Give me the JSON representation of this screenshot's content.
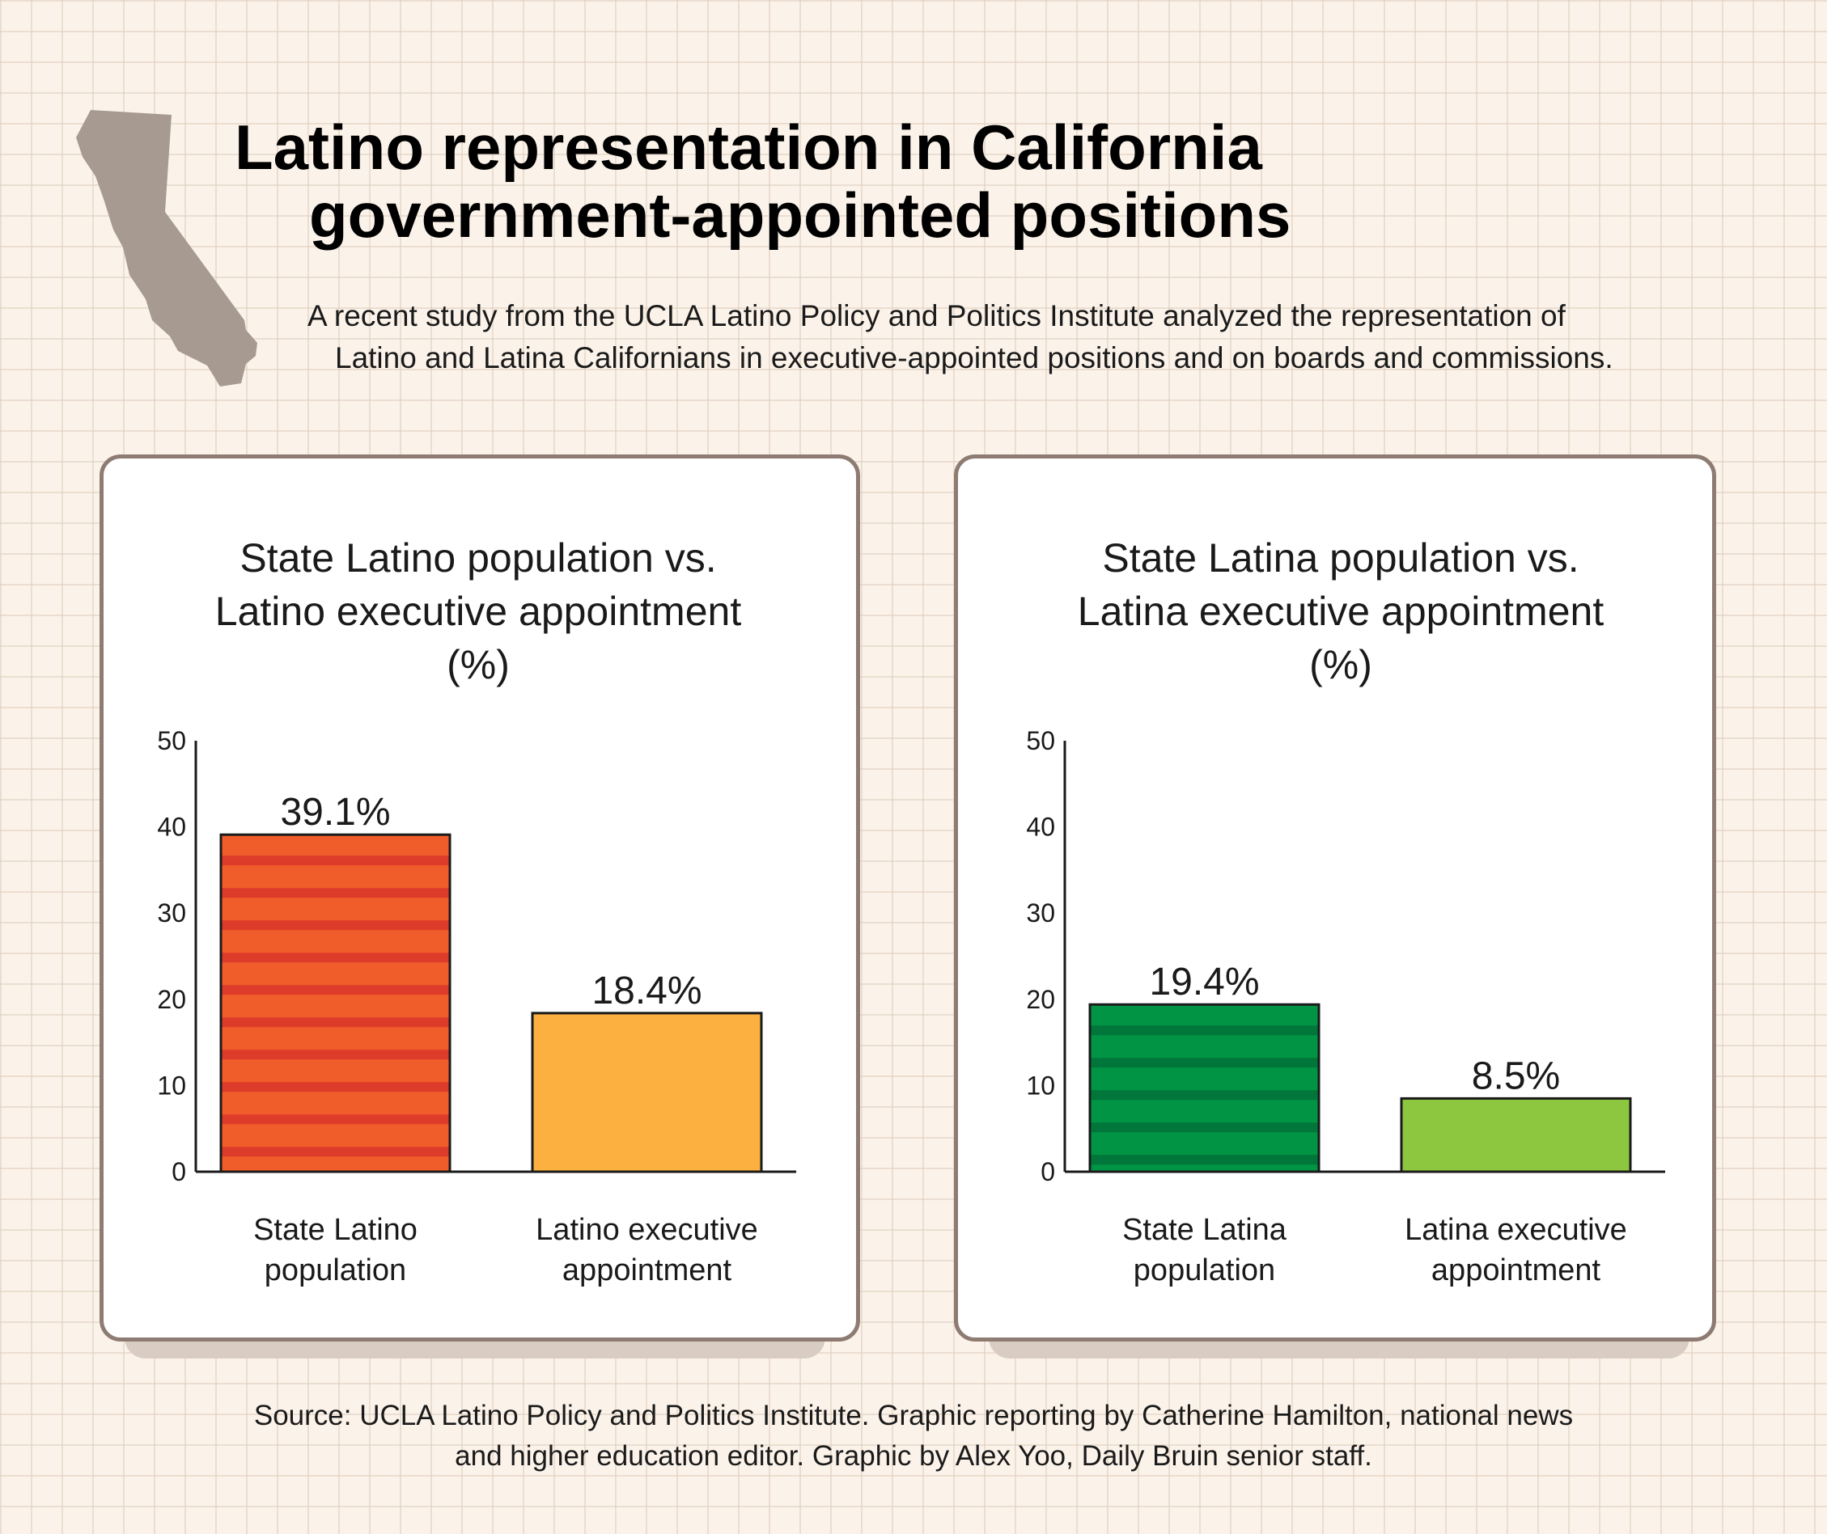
{
  "header": {
    "title_line1": "Latino representation in California",
    "title_line2": "government-appointed positions",
    "subtitle_line1": "A recent study from the UCLA Latino Policy and Politics Institute analyzed the representation of",
    "subtitle_line2": "Latino and Latina Californians in executive-appointed positions and on boards and commissions."
  },
  "footer": {
    "source_line1": "Source: UCLA Latino Policy and Politics Institute. Graphic reporting by Catherine Hamilton, national news",
    "source_line2": "and higher education editor. Graphic by Alex Yoo, Daily Bruin senior staff."
  },
  "colors": {
    "background": "#fbf3ea",
    "card_border": "#8e7c73",
    "map": "#a69a91",
    "latino_population": "#f15d2a",
    "latino_population_stripe": "#de3c2a",
    "latino_appointment": "#fbb040",
    "latina_population": "#009444",
    "latina_population_stripe": "#00763a",
    "latina_appointment": "#8dc63f"
  },
  "chart_data": [
    {
      "type": "bar",
      "title_lines": [
        "State Latino population vs.",
        "Latino executive appointment",
        "(%)"
      ],
      "categories": [
        [
          "State Latino",
          "population"
        ],
        [
          "Latino executive",
          "appointment"
        ]
      ],
      "values": [
        39.1,
        18.4
      ],
      "data_labels": [
        "39.1%",
        "18.4%"
      ],
      "bar_colors": [
        "#f15d2a",
        "#fbb040"
      ],
      "stripe_colors": [
        "#de3c2a",
        null
      ],
      "yticks": [
        "0",
        "10",
        "20",
        "30",
        "40",
        "50"
      ],
      "ylim": [
        0,
        50
      ],
      "xlabel": "",
      "ylabel": ""
    },
    {
      "type": "bar",
      "title_lines": [
        "State Latina population vs.",
        "Latina executive appointment",
        "(%)"
      ],
      "categories": [
        [
          "State Latina",
          "population"
        ],
        [
          "Latina executive",
          "appointment"
        ]
      ],
      "values": [
        19.4,
        8.5
      ],
      "data_labels": [
        "19.4%",
        "8.5%"
      ],
      "bar_colors": [
        "#009444",
        "#8dc63f"
      ],
      "stripe_colors": [
        "#00763a",
        null
      ],
      "yticks": [
        "0",
        "10",
        "20",
        "30",
        "40",
        "50"
      ],
      "ylim": [
        0,
        50
      ],
      "xlabel": "",
      "ylabel": ""
    }
  ]
}
